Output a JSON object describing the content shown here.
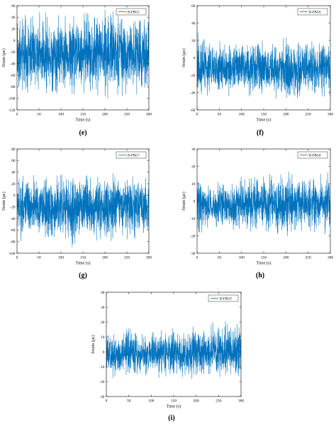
{
  "chart_data": [
    {
      "type": "line",
      "panel": "(e)",
      "xlabel": "Time (s)",
      "ylabel": "Strain (με)",
      "xlim": [
        0,
        300
      ],
      "ylim": [
        -120,
        60
      ],
      "xticks": [
        0,
        50,
        100,
        150,
        200,
        250,
        300
      ],
      "yticks": [
        -120,
        -100,
        -80,
        -60,
        -40,
        -20,
        0,
        20,
        40,
        60
      ],
      "legend": "top-right",
      "grid": false,
      "color": "#0072bd",
      "series": [
        {
          "name": "B-FBG5",
          "envelope": {
            "x": [
              0,
              10,
              25,
              50,
              75,
              100,
              120,
              125,
              130,
              150,
              175,
              200,
              205,
              210,
              225,
              250,
              275,
              300
            ],
            "upper": [
              42,
              38,
              34,
              35,
              34,
              36,
              34,
              40,
              36,
              34,
              36,
              42,
              46,
              38,
              36,
              34,
              35,
              38
            ],
            "lower": [
              -82,
              -92,
              -82,
              -80,
              -80,
              -80,
              -78,
              -95,
              -80,
              -80,
              -82,
              -88,
              -100,
              -84,
              -82,
              -82,
              -80,
              -84
            ]
          }
        }
      ]
    },
    {
      "type": "line",
      "panel": "(f)",
      "xlabel": "Time (s)",
      "ylabel": "Strain (με)",
      "xlim": [
        0,
        300
      ],
      "ylim": [
        -60,
        60
      ],
      "xticks": [
        0,
        50,
        100,
        150,
        200,
        250,
        300
      ],
      "yticks": [
        -60,
        -40,
        -20,
        0,
        20,
        40,
        60
      ],
      "legend": "top-right",
      "grid": false,
      "color": "#0072bd",
      "series": [
        {
          "name": "B-FBG6",
          "envelope": {
            "x": [
              0,
              10,
              25,
              50,
              75,
              100,
              125,
              150,
              175,
              200,
              210,
              225,
              250,
              275,
              300
            ],
            "upper": [
              22,
              18,
              14,
              14,
              15,
              14,
              16,
              15,
              15,
              18,
              14,
              15,
              16,
              15,
              18
            ],
            "lower": [
              -46,
              -42,
              -38,
              -38,
              -38,
              -36,
              -40,
              -38,
              -40,
              -42,
              -52,
              -40,
              -38,
              -40,
              -42
            ]
          }
        }
      ]
    },
    {
      "type": "line",
      "panel": "(g)",
      "xlabel": "Time (s)",
      "ylabel": "Strain (με)",
      "xlim": [
        0,
        300
      ],
      "ylim": [
        -100,
        80
      ],
      "xticks": [
        0,
        50,
        100,
        150,
        200,
        250,
        300
      ],
      "yticks": [
        -100,
        -80,
        -60,
        -40,
        -20,
        0,
        20,
        40,
        60,
        80
      ],
      "legend": "top-right",
      "grid": false,
      "color": "#0072bd",
      "series": [
        {
          "name": "B-FBG7",
          "envelope": {
            "x": [
              0,
              10,
              25,
              50,
              75,
              100,
              125,
              150,
              175,
              200,
              210,
              225,
              250,
              275,
              300
            ],
            "upper": [
              34,
              30,
              24,
              24,
              24,
              26,
              28,
              25,
              26,
              28,
              30,
              26,
              26,
              28,
              30
            ],
            "lower": [
              -66,
              -76,
              -64,
              -62,
              -64,
              -64,
              -80,
              -64,
              -66,
              -68,
              -82,
              -66,
              -66,
              -66,
              -68
            ]
          }
        }
      ]
    },
    {
      "type": "line",
      "panel": "(h)",
      "xlabel": "Time (s)",
      "ylabel": "Strain (με)",
      "xlim": [
        0,
        300
      ],
      "ylim": [
        -30,
        30
      ],
      "xticks": [
        0,
        50,
        100,
        150,
        200,
        250,
        300
      ],
      "yticks": [
        -30,
        -20,
        -10,
        0,
        10,
        20,
        30
      ],
      "legend": "top-right",
      "grid": false,
      "color": "#0072bd",
      "series": [
        {
          "name": "B-FBG8",
          "envelope": {
            "x": [
              0,
              25,
              50,
              75,
              100,
              125,
              150,
              175,
              200,
              225,
              250,
              275,
              300
            ],
            "upper": [
              12,
              8,
              10,
              9,
              12,
              10,
              14,
              12,
              14,
              12,
              13,
              12,
              14
            ],
            "lower": [
              -16,
              -14,
              -14,
              -15,
              -14,
              -15,
              -14,
              -16,
              -17,
              -14,
              -15,
              -15,
              -16
            ]
          }
        }
      ]
    },
    {
      "type": "line",
      "panel": "(i)",
      "xlabel": "Time (s)",
      "ylabel": "Strain (με)",
      "xlim": [
        0,
        300
      ],
      "ylim": [
        -30,
        40
      ],
      "xticks": [
        0,
        50,
        100,
        150,
        200,
        250,
        300
      ],
      "yticks": [
        -30,
        -20,
        -10,
        0,
        10,
        20,
        30,
        40
      ],
      "legend": "top-right",
      "grid": false,
      "color": "#0072bd",
      "series": [
        {
          "name": "B-FBG9",
          "envelope": {
            "x": [
              0,
              25,
              50,
              75,
              100,
              125,
              150,
              175,
              200,
              225,
              250,
              275,
              300
            ],
            "upper": [
              12,
              10,
              14,
              10,
              10,
              14,
              14,
              12,
              16,
              14,
              18,
              16,
              16
            ],
            "lower": [
              -16,
              -14,
              -14,
              -15,
              -14,
              -15,
              -15,
              -16,
              -16,
              -16,
              -16,
              -16,
              -16
            ]
          }
        }
      ]
    }
  ]
}
